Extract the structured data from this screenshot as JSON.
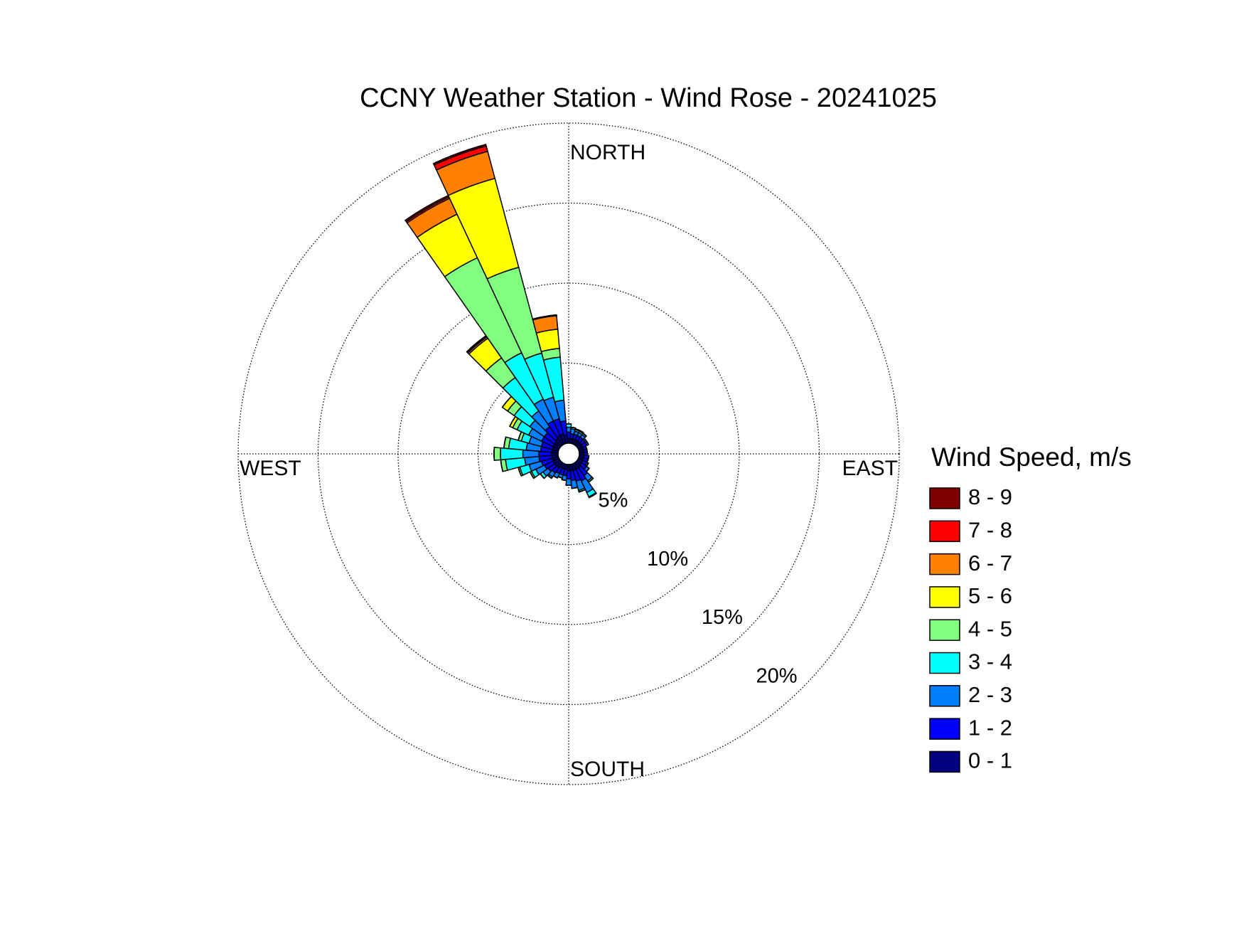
{
  "chart_data": {
    "type": "windrose",
    "title": "CCNY Weather Station - Wind Rose - 20241025",
    "legend_title": "Wind Speed, m/s",
    "compass_labels": {
      "north": "NORTH",
      "east": "EAST",
      "south": "SOUTH",
      "west": "WEST"
    },
    "x": [
      0,
      10,
      20,
      30,
      40,
      50,
      60,
      70,
      80,
      90,
      100,
      110,
      120,
      130,
      140,
      150,
      160,
      170,
      180,
      190,
      200,
      210,
      220,
      230,
      240,
      250,
      260,
      270,
      280,
      290,
      300,
      310,
      320,
      330,
      340,
      350
    ],
    "rlim": [
      0,
      20
    ],
    "rticks": [
      {
        "value": 5,
        "label": "5%"
      },
      {
        "value": 10,
        "label": "10%"
      },
      {
        "value": 15,
        "label": "15%"
      },
      {
        "value": 20,
        "label": "20%"
      }
    ],
    "grid": true,
    "legend_position": "right",
    "series": [
      {
        "name": "0 - 1",
        "color": "#000080",
        "values": [
          0.3,
          0.3,
          0.3,
          0.3,
          0.3,
          0.3,
          0.3,
          0.3,
          0.3,
          0.3,
          0.3,
          0.3,
          0.3,
          0.3,
          0.4,
          0.4,
          0.4,
          0.4,
          0.4,
          0.3,
          0.3,
          0.3,
          0.4,
          0.4,
          0.4,
          0.4,
          0.4,
          0.4,
          0.4,
          0.4,
          0.4,
          0.4,
          0.5,
          0.6,
          0.6,
          0.5
        ]
      },
      {
        "name": "1 - 2",
        "color": "#0000ff",
        "values": [
          0.4,
          0.3,
          0.3,
          0.3,
          0.3,
          0.3,
          0.3,
          0.2,
          0.2,
          0.2,
          0.3,
          0.3,
          0.3,
          0.4,
          0.6,
          0.8,
          0.7,
          0.6,
          0.5,
          0.4,
          0.4,
          0.4,
          0.4,
          0.5,
          0.6,
          0.7,
          0.8,
          0.8,
          0.7,
          0.7,
          0.8,
          0.8,
          0.9,
          1.0,
          1.0,
          0.9
        ]
      },
      {
        "name": "2 - 3",
        "color": "#0080ff",
        "values": [
          0.3,
          0.3,
          0.2,
          0.2,
          0.2,
          0.1,
          0.1,
          0,
          0,
          0,
          0,
          0,
          0.1,
          0.2,
          0.4,
          0.8,
          0.6,
          0.5,
          0.4,
          0.3,
          0.2,
          0.3,
          0.3,
          0.4,
          0.6,
          0.8,
          0.9,
          1.0,
          0.9,
          0.8,
          0.9,
          1.1,
          1.2,
          1.5,
          1.4,
          1.3
        ]
      },
      {
        "name": "3 - 4",
        "color": "#00ffff",
        "values": [
          0.2,
          0.1,
          0.1,
          0.1,
          0.1,
          0,
          0,
          0,
          0,
          0,
          0,
          0,
          0,
          0,
          0.1,
          0.3,
          0.1,
          0,
          0,
          0,
          0,
          0,
          0.1,
          0.2,
          0.3,
          0.6,
          1.2,
          1.4,
          1.1,
          0.5,
          0.8,
          1.2,
          2.55,
          3.2,
          2.85,
          2.7
        ]
      },
      {
        "name": "4 - 5",
        "color": "#80ff80",
        "values": [
          0,
          0,
          0.05,
          0.05,
          0,
          0,
          0,
          0,
          0,
          0,
          0,
          0,
          0,
          0,
          0,
          0.05,
          0,
          0,
          0,
          0,
          0,
          0,
          0,
          0,
          0.1,
          0.1,
          0.3,
          0.4,
          0.3,
          0.2,
          0.3,
          0.5,
          1.5,
          6.55,
          5.55,
          0.55
        ]
      },
      {
        "name": "5 - 6",
        "color": "#ffff00",
        "values": [
          0,
          0,
          0,
          0,
          0,
          0,
          0,
          0,
          0,
          0,
          0,
          0,
          0,
          0,
          0,
          0,
          0,
          0,
          0,
          0,
          0,
          0,
          0,
          0,
          0,
          0,
          0,
          0,
          0,
          0,
          0.2,
          0.4,
          1.5,
          3.0,
          5.75,
          1.2
        ]
      },
      {
        "name": "6 - 7",
        "color": "#ff8000",
        "values": [
          0,
          0,
          0,
          0,
          0,
          0,
          0,
          0,
          0,
          0,
          0,
          0,
          0,
          0,
          0,
          0,
          0,
          0,
          0,
          0,
          0,
          0,
          0,
          0,
          0,
          0,
          0,
          0,
          0,
          0,
          0,
          0,
          0.1,
          1.1,
          1.75,
          0.85
        ]
      },
      {
        "name": "7 - 8",
        "color": "#ff0000",
        "values": [
          0,
          0,
          0,
          0,
          0,
          0,
          0,
          0,
          0,
          0,
          0,
          0,
          0,
          0,
          0,
          0,
          0,
          0,
          0,
          0,
          0,
          0,
          0,
          0,
          0,
          0,
          0,
          0,
          0,
          0,
          0,
          0,
          0.05,
          0.1,
          0.35,
          0.05
        ]
      },
      {
        "name": "8 - 9",
        "color": "#800000",
        "values": [
          0,
          0,
          0,
          0,
          0,
          0,
          0,
          0,
          0,
          0,
          0,
          0,
          0,
          0,
          0,
          0,
          0,
          0,
          0,
          0,
          0,
          0,
          0,
          0,
          0,
          0,
          0,
          0,
          0,
          0,
          0,
          0,
          0.05,
          0.1,
          0.1,
          0
        ]
      }
    ]
  }
}
